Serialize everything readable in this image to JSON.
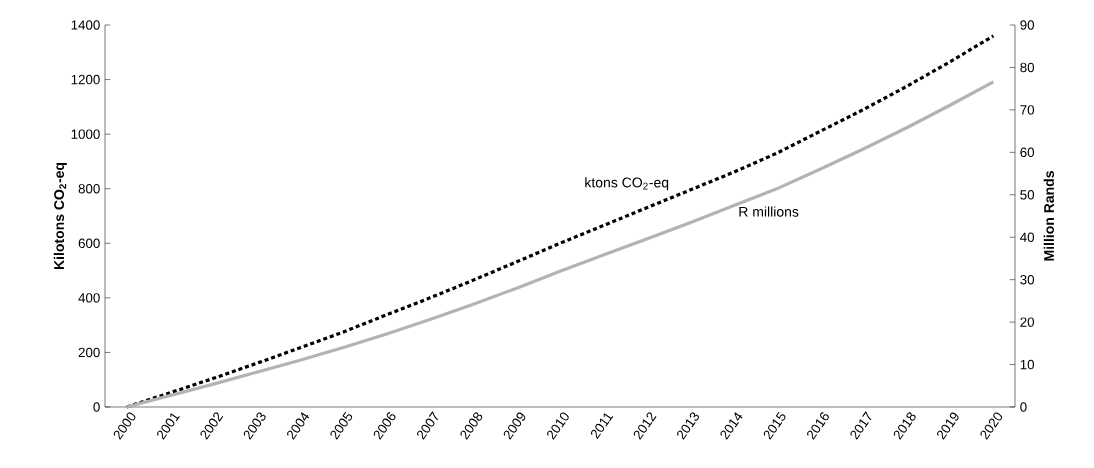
{
  "chart_data": {
    "type": "line",
    "categories": [
      "2000",
      "2001",
      "2002",
      "2003",
      "2004",
      "2005",
      "2006",
      "2007",
      "2008",
      "2009",
      "2010",
      "2011",
      "2012",
      "2013",
      "2014",
      "2015",
      "2016",
      "2017",
      "2018",
      "2019",
      "2020"
    ],
    "ylabel": "Kilotons CO$_{2}$-eq",
    "y2label": "Million Rands",
    "ylim": [
      0,
      1400
    ],
    "yticks": [
      0,
      200,
      400,
      600,
      800,
      1000,
      1200,
      1400
    ],
    "y2lim": [
      0,
      90
    ],
    "y2ticks": [
      0,
      10,
      20,
      30,
      40,
      50,
      60,
      70,
      80,
      90
    ],
    "series": [
      {
        "name": "ktons CO$_{2}$-eq",
        "color": "#000000",
        "line_style": "dotted",
        "values": [
          0,
          52,
          105,
          160,
          217,
          275,
          338,
          400,
          465,
          532,
          600,
          665,
          730,
          795,
          860,
          930,
          1010,
          1090,
          1175,
          1265,
          1360
        ]
      },
      {
        "name": "R millions",
        "color": "#b3b3b3",
        "line_style": "solid",
        "axis": "y2",
        "values": [
          0,
          2.7,
          5.4,
          8.2,
          11.0,
          14.0,
          17.2,
          20.6,
          24.2,
          28.0,
          32.0,
          35.8,
          39.6,
          43.4,
          47.4,
          51.4,
          56.0,
          60.8,
          65.8,
          71.1,
          76.6
        ]
      }
    ]
  }
}
